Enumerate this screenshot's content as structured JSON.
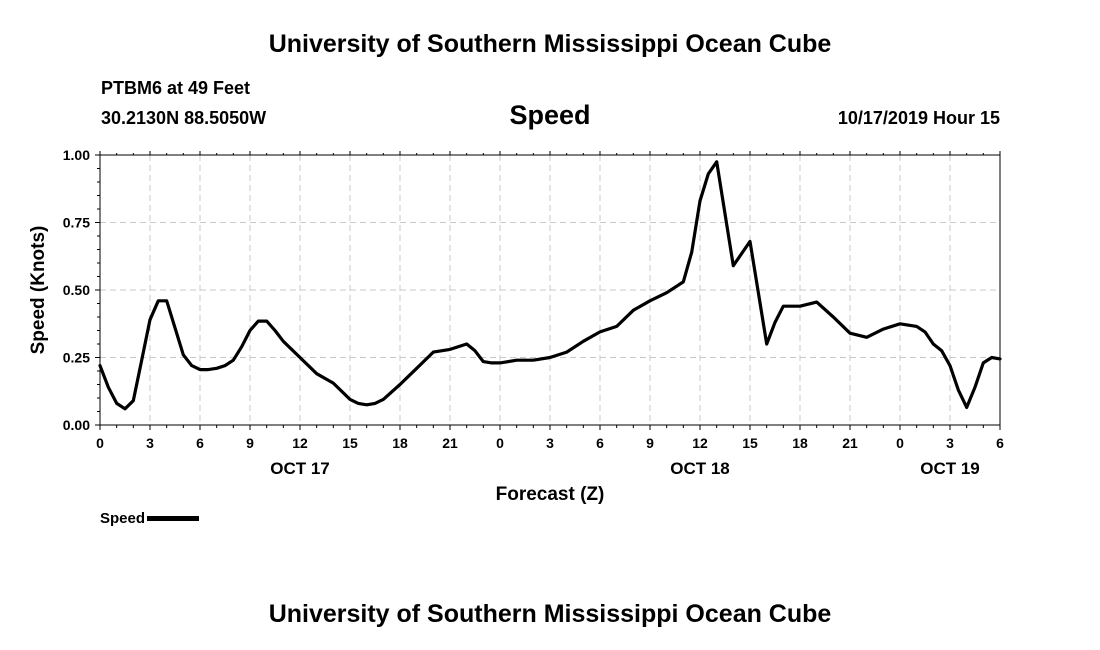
{
  "header": {
    "title": "University of Southern Mississippi Ocean Cube",
    "station": "PTBM6 at 49 Feet",
    "coords": "30.2130N 88.5050W",
    "issued": "10/17/2019 Hour 15"
  },
  "footer": {
    "title": "University of Southern Mississippi Ocean Cube"
  },
  "legend": {
    "label": "Speed"
  },
  "colors": {
    "line": "#000000",
    "grid": "#c8c8c8"
  },
  "chart_data": {
    "type": "line",
    "title": "Speed",
    "xlabel": "Forecast (Z)",
    "ylabel": "Speed (Knots)",
    "xlim": [
      0,
      54
    ],
    "ylim": [
      0,
      1.0
    ],
    "grid": true,
    "x_ticks": [
      0,
      3,
      6,
      9,
      12,
      15,
      18,
      21,
      24,
      27,
      30,
      33,
      36,
      39,
      42,
      45,
      48,
      51,
      54
    ],
    "x_tick_labels": [
      "0",
      "3",
      "6",
      "9",
      "12",
      "15",
      "18",
      "21",
      "0",
      "3",
      "6",
      "9",
      "12",
      "15",
      "18",
      "21",
      "0",
      "3",
      "6"
    ],
    "y_ticks": [
      0,
      0.25,
      0.5,
      0.75,
      1.0
    ],
    "y_tick_labels": [
      "0.00",
      "0.25",
      "0.50",
      "0.75",
      "1.00"
    ],
    "date_labels": [
      {
        "x": 12,
        "label": "OCT 17"
      },
      {
        "x": 36,
        "label": "OCT 18"
      },
      {
        "x": 51,
        "label": "OCT 19"
      }
    ],
    "series": [
      {
        "name": "Speed",
        "x": [
          0,
          0.5,
          1,
          1.5,
          2,
          2.5,
          3,
          3.5,
          4,
          4.5,
          5,
          5.5,
          6,
          6.5,
          7,
          7.5,
          8,
          8.5,
          9,
          9.5,
          10,
          10.5,
          11,
          12,
          13,
          14,
          15,
          15.5,
          16,
          16.5,
          17,
          18,
          19,
          20,
          21,
          22,
          22.5,
          23,
          23.5,
          24,
          25,
          26,
          27,
          28,
          29,
          30,
          31,
          32,
          33,
          34,
          35,
          35.5,
          36,
          36.5,
          37,
          38,
          39,
          40,
          40.5,
          41,
          42,
          43,
          44,
          45,
          46,
          47,
          48,
          49,
          49.5,
          50,
          50.5,
          51,
          51.5,
          52,
          52.5,
          53,
          53.5,
          54
        ],
        "values": [
          0.22,
          0.14,
          0.08,
          0.06,
          0.09,
          0.24,
          0.39,
          0.46,
          0.46,
          0.36,
          0.26,
          0.22,
          0.205,
          0.205,
          0.21,
          0.22,
          0.24,
          0.29,
          0.35,
          0.385,
          0.385,
          0.35,
          0.31,
          0.25,
          0.19,
          0.155,
          0.095,
          0.08,
          0.075,
          0.08,
          0.095,
          0.15,
          0.21,
          0.27,
          0.28,
          0.3,
          0.275,
          0.235,
          0.23,
          0.23,
          0.24,
          0.24,
          0.25,
          0.27,
          0.31,
          0.345,
          0.365,
          0.425,
          0.46,
          0.49,
          0.53,
          0.64,
          0.83,
          0.93,
          0.975,
          0.59,
          0.68,
          0.3,
          0.38,
          0.44,
          0.44,
          0.455,
          0.4,
          0.34,
          0.325,
          0.355,
          0.375,
          0.365,
          0.345,
          0.3,
          0.275,
          0.22,
          0.13,
          0.065,
          0.14,
          0.23,
          0.25,
          0.245
        ]
      }
    ]
  }
}
